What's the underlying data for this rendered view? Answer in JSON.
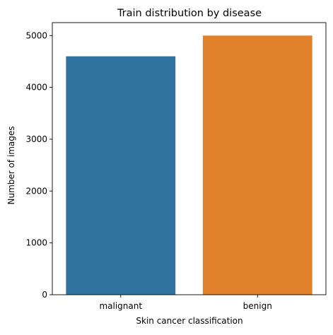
{
  "chart_data": {
    "type": "bar",
    "title": "Train distribution by disease",
    "xlabel": "Skin cancer classification",
    "ylabel": "Number of images",
    "categories": [
      "malignant",
      "benign"
    ],
    "values": [
      4600,
      5000
    ],
    "colors": [
      "#3274a1",
      "#e1812c"
    ],
    "ylim": [
      0,
      5250
    ],
    "yticks": [
      0,
      1000,
      2000,
      3000,
      4000,
      5000
    ],
    "grid": false,
    "legend": "none"
  }
}
